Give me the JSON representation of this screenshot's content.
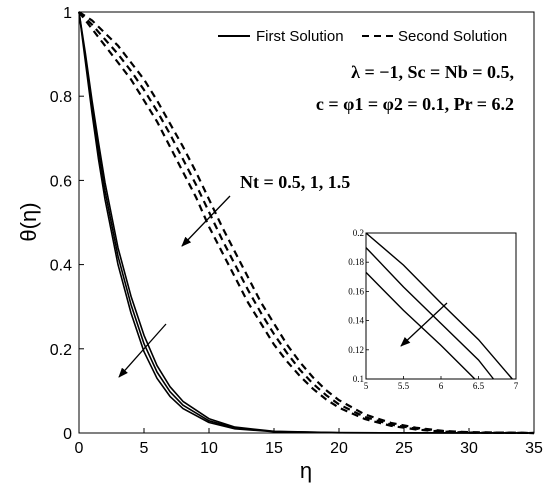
{
  "chart_data": {
    "type": "line",
    "title": "",
    "xlabel": "η",
    "ylabel": "θ(η)",
    "xlim": [
      0,
      35
    ],
    "ylim": [
      0,
      1
    ],
    "xticks": [
      "0",
      "5",
      "10",
      "15",
      "20",
      "25",
      "30",
      "35"
    ],
    "yticks": [
      "0",
      "0.2",
      "0.4",
      "0.6",
      "0.8",
      "1"
    ],
    "legend": {
      "placement": "top-right",
      "entries": [
        {
          "label": "First Solution",
          "style": "solid"
        },
        {
          "label": "Second Solution",
          "style": "dashed"
        }
      ]
    },
    "annotations": {
      "params_line1": "λ = −1, Sc = Nb = 0.5,",
      "params_line2": "c = φ1 = φ2 = 0.1, Pr = 6.2",
      "nt_label": "Nt = 0.5, 1, 1.5"
    },
    "series": [
      {
        "style": "solid",
        "x": [
          0,
          0.5,
          1,
          1.5,
          2,
          3,
          4,
          5,
          6,
          7,
          8,
          10,
          12,
          15,
          20,
          35
        ],
        "y": [
          1,
          0.88,
          0.76,
          0.65,
          0.555,
          0.4,
          0.285,
          0.193,
          0.13,
          0.087,
          0.058,
          0.025,
          0.01,
          0.003,
          0.0005,
          0
        ]
      },
      {
        "style": "solid",
        "x": [
          0,
          0.5,
          1,
          1.5,
          2,
          3,
          4,
          5,
          6,
          7,
          8,
          10,
          12,
          15,
          20,
          35
        ],
        "y": [
          1,
          0.89,
          0.775,
          0.67,
          0.575,
          0.42,
          0.305,
          0.212,
          0.145,
          0.098,
          0.066,
          0.029,
          0.012,
          0.0035,
          0.0006,
          0
        ]
      },
      {
        "style": "solid",
        "x": [
          0,
          0.5,
          1,
          1.5,
          2,
          3,
          4,
          5,
          6,
          7,
          8,
          10,
          12,
          15,
          20,
          35
        ],
        "y": [
          1,
          0.9,
          0.79,
          0.69,
          0.595,
          0.44,
          0.325,
          0.232,
          0.16,
          0.11,
          0.075,
          0.034,
          0.014,
          0.004,
          0.0007,
          0
        ]
      },
      {
        "style": "dashed",
        "x": [
          0,
          0.5,
          1,
          2,
          3,
          4,
          5,
          6,
          7,
          8,
          9,
          10,
          11,
          12,
          13,
          14,
          15,
          16,
          17,
          18,
          19,
          20,
          22,
          24,
          26,
          28,
          30,
          35
        ],
        "y": [
          1,
          0.98,
          0.96,
          0.92,
          0.88,
          0.84,
          0.79,
          0.74,
          0.68,
          0.62,
          0.56,
          0.49,
          0.43,
          0.37,
          0.31,
          0.26,
          0.21,
          0.17,
          0.135,
          0.105,
          0.08,
          0.06,
          0.033,
          0.017,
          0.008,
          0.003,
          0.001,
          0
        ]
      },
      {
        "style": "dashed",
        "x": [
          0,
          0.5,
          1,
          2,
          3,
          4,
          5,
          6,
          7,
          8,
          9,
          10,
          11,
          12,
          13,
          14,
          15,
          16,
          17,
          18,
          19,
          20,
          22,
          24,
          26,
          28,
          30,
          35
        ],
        "y": [
          1,
          0.985,
          0.97,
          0.935,
          0.9,
          0.86,
          0.815,
          0.765,
          0.71,
          0.65,
          0.59,
          0.525,
          0.46,
          0.4,
          0.34,
          0.285,
          0.235,
          0.19,
          0.15,
          0.117,
          0.09,
          0.068,
          0.038,
          0.02,
          0.01,
          0.004,
          0.0015,
          0
        ]
      },
      {
        "style": "dashed",
        "x": [
          0,
          0.5,
          1,
          2,
          3,
          4,
          5,
          6,
          7,
          8,
          9,
          10,
          11,
          12,
          13,
          14,
          15,
          16,
          17,
          18,
          19,
          20,
          22,
          24,
          26,
          28,
          30,
          35
        ],
        "y": [
          1,
          0.99,
          0.98,
          0.95,
          0.92,
          0.88,
          0.84,
          0.79,
          0.735,
          0.68,
          0.62,
          0.555,
          0.49,
          0.43,
          0.37,
          0.31,
          0.26,
          0.21,
          0.168,
          0.132,
          0.102,
          0.078,
          0.044,
          0.024,
          0.012,
          0.005,
          0.002,
          0
        ]
      }
    ],
    "inset": {
      "xlim": [
        5,
        7
      ],
      "ylim": [
        0.1,
        0.2
      ],
      "xticks": [
        "5",
        "5.5",
        "6",
        "6.5",
        "7"
      ],
      "yticks": [
        "0.1",
        "0.12",
        "0.14",
        "0.16",
        "0.18",
        "0.2"
      ],
      "series": [
        {
          "x": [
            5,
            5.5,
            6,
            6.45
          ],
          "y": [
            0.173,
            0.147,
            0.123,
            0.1
          ]
        },
        {
          "x": [
            5,
            5.5,
            6,
            6.5,
            6.7
          ],
          "y": [
            0.19,
            0.163,
            0.138,
            0.113,
            0.1
          ]
        },
        {
          "x": [
            5,
            5.5,
            6,
            6.5,
            6.95
          ],
          "y": [
            0.205,
            0.178,
            0.152,
            0.127,
            0.1
          ]
        }
      ]
    }
  }
}
